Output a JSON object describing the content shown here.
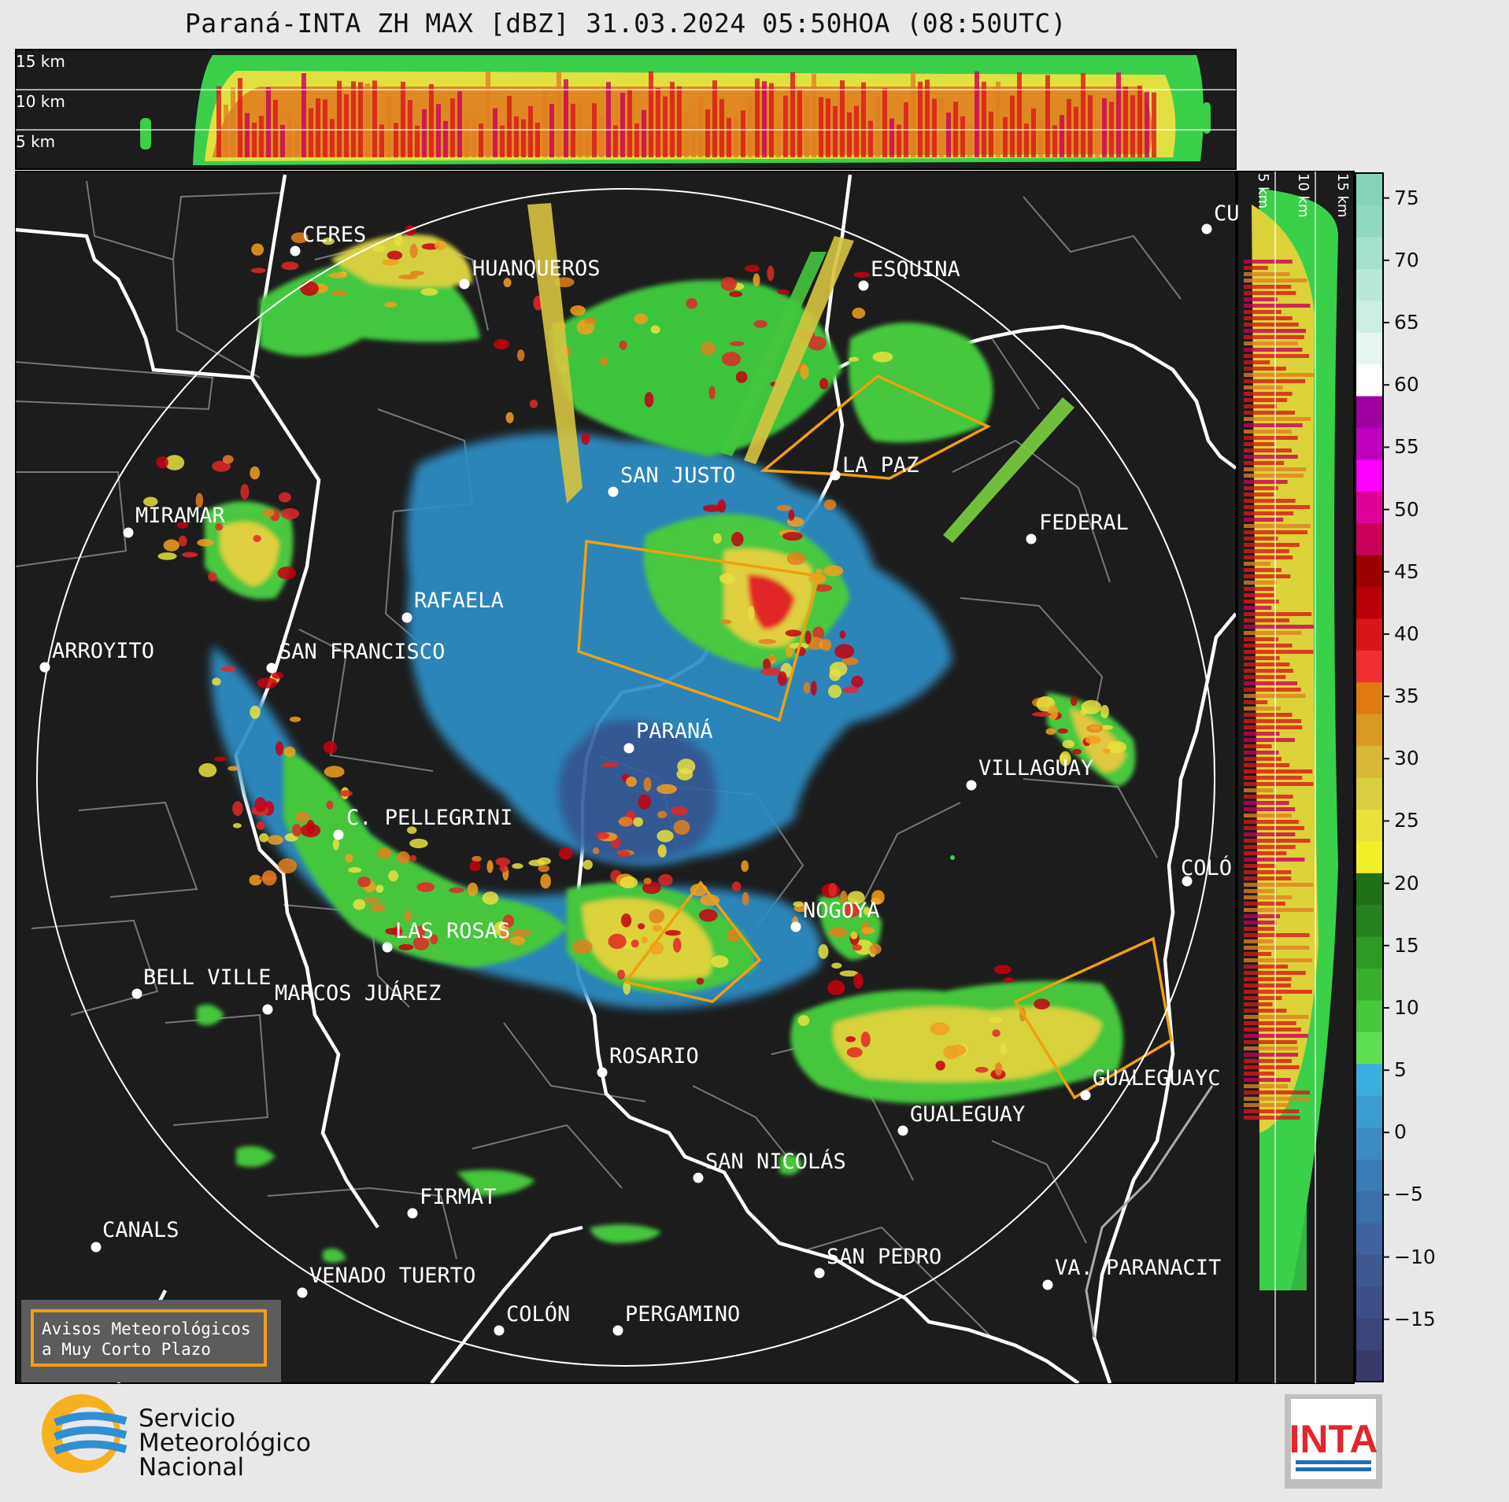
{
  "title": "Paraná-INTA ZH MAX [dBZ] 31.03.2024 05:50HOA (08:50UTC)",
  "height_labels": {
    "top": [
      "15 km",
      "10 km",
      "5 km"
    ],
    "side": [
      "5 km",
      "10 km",
      "15 km"
    ]
  },
  "cities": [
    "CERES",
    "HUANQUEROS",
    "ESQUINA",
    "CU",
    "SAN JUSTO",
    "LA PAZ",
    "MIRAMAR",
    "FEDERAL",
    "RAFAELA",
    "ARROYITO",
    "SAN FRANCISCO",
    "PARANÁ",
    "VILLAGUAY",
    "C. PELLEGRINI",
    "COLÓ",
    "NOGOYA",
    "LAS ROSAS",
    "BELL VILLE",
    "MARCOS JUÁREZ",
    "ROSARIO",
    "GUALEGUAYC",
    "GUALEGUAY",
    "SAN NICOLÁS",
    "FIRMAT",
    "CANALS",
    "SAN PEDRO",
    "VA. PARANACIT",
    "VENADO TUERTO",
    "COLÓN",
    "PERGAMINO"
  ],
  "colorbar": {
    "unit": "dBZ",
    "ticks": [
      "75",
      "70",
      "65",
      "60",
      "55",
      "50",
      "45",
      "40",
      "35",
      "30",
      "25",
      "20",
      "15",
      "10",
      "5",
      "0",
      "−5",
      "−10",
      "−15"
    ],
    "tick_values": [
      75,
      70,
      65,
      60,
      55,
      50,
      45,
      40,
      35,
      30,
      25,
      20,
      15,
      10,
      5,
      0,
      -5,
      -10,
      -15
    ],
    "range": [
      -20,
      77
    ],
    "colors": [
      "#3a3a6a",
      "#3c4478",
      "#3e4e86",
      "#3f5892",
      "#3f639e",
      "#3c70ab",
      "#3a7db6",
      "#3c8cc2",
      "#3a9ccf",
      "#3aaede",
      "#5ce052",
      "#48c83c",
      "#38b02e",
      "#2e9a26",
      "#268220",
      "#207018",
      "#f0f02a",
      "#e6e23a",
      "#d8d040",
      "#d6b836",
      "#d89a20",
      "#e07a10",
      "#f03030",
      "#d81818",
      "#b80008",
      "#9a0000",
      "#c8005a",
      "#e0009a",
      "#ff00ff",
      "#c000c0",
      "#a000a0",
      "#ffffff",
      "#e6f6ee",
      "#cdeee0",
      "#b8e8d6",
      "#a4e0cc",
      "#90d8be",
      "#86d4b8"
    ]
  },
  "warning_box": {
    "line1": "Avisos Meteorológicos",
    "line2": "a Muy Corto Plazo"
  },
  "logos": {
    "smn": {
      "line1": "Servicio",
      "line2": "Meteorológico",
      "line3": "Nacional",
      "colors": [
        "#f7b11e",
        "#2f8fd3"
      ]
    },
    "inta": {
      "text": "INTA",
      "colors": [
        "#e3262b",
        "#1f6fb5"
      ]
    }
  }
}
